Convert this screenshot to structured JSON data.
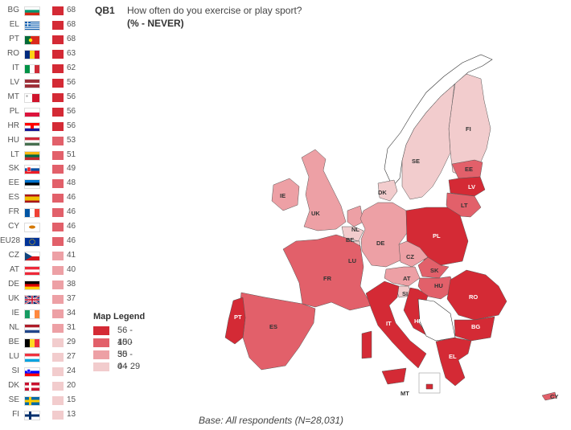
{
  "question": {
    "code": "QB1",
    "text": "How often do you exercise or play sport?",
    "subtitle": "(% - NEVER)"
  },
  "countries": [
    {
      "code": "BG",
      "value": 68,
      "flag": "bg"
    },
    {
      "code": "EL",
      "value": 68,
      "flag": "gr"
    },
    {
      "code": "PT",
      "value": 68,
      "flag": "pt"
    },
    {
      "code": "RO",
      "value": 63,
      "flag": "ro"
    },
    {
      "code": "IT",
      "value": 62,
      "flag": "it"
    },
    {
      "code": "LV",
      "value": 56,
      "flag": "lv"
    },
    {
      "code": "MT",
      "value": 56,
      "flag": "mt"
    },
    {
      "code": "PL",
      "value": 56,
      "flag": "pl"
    },
    {
      "code": "HR",
      "value": 56,
      "flag": "hr"
    },
    {
      "code": "HU",
      "value": 53,
      "flag": "hu"
    },
    {
      "code": "LT",
      "value": 51,
      "flag": "lt"
    },
    {
      "code": "SK",
      "value": 49,
      "flag": "sk"
    },
    {
      "code": "EE",
      "value": 48,
      "flag": "ee"
    },
    {
      "code": "ES",
      "value": 46,
      "flag": "es"
    },
    {
      "code": "FR",
      "value": 46,
      "flag": "fr"
    },
    {
      "code": "CY",
      "value": 46,
      "flag": "cy"
    },
    {
      "code": "EU28",
      "value": 46,
      "flag": "eu"
    },
    {
      "code": "CZ",
      "value": 41,
      "flag": "cz"
    },
    {
      "code": "AT",
      "value": 40,
      "flag": "at"
    },
    {
      "code": "DE",
      "value": 38,
      "flag": "de"
    },
    {
      "code": "UK",
      "value": 37,
      "flag": "uk"
    },
    {
      "code": "IE",
      "value": 34,
      "flag": "ie"
    },
    {
      "code": "NL",
      "value": 31,
      "flag": "nl"
    },
    {
      "code": "BE",
      "value": 29,
      "flag": "be"
    },
    {
      "code": "LU",
      "value": 27,
      "flag": "lu"
    },
    {
      "code": "SI",
      "value": 24,
      "flag": "si"
    },
    {
      "code": "DK",
      "value": 20,
      "flag": "dk"
    },
    {
      "code": "SE",
      "value": 15,
      "flag": "se"
    },
    {
      "code": "FI",
      "value": 13,
      "flag": "fi"
    }
  ],
  "legend": {
    "title": "Map Legend",
    "items": [
      {
        "label": "56 - 100",
        "color": "#d42a35",
        "min": 56,
        "max": 100
      },
      {
        "label": "45 - 55",
        "color": "#e2606a",
        "min": 45,
        "max": 55
      },
      {
        "label": "30 - 44",
        "color": "#eda0a5",
        "min": 30,
        "max": 44
      },
      {
        "label": "0 - 29",
        "color": "#f2cccd",
        "min": 0,
        "max": 29
      }
    ]
  },
  "base_note": "Base: All respondents (N=28,031)"
}
